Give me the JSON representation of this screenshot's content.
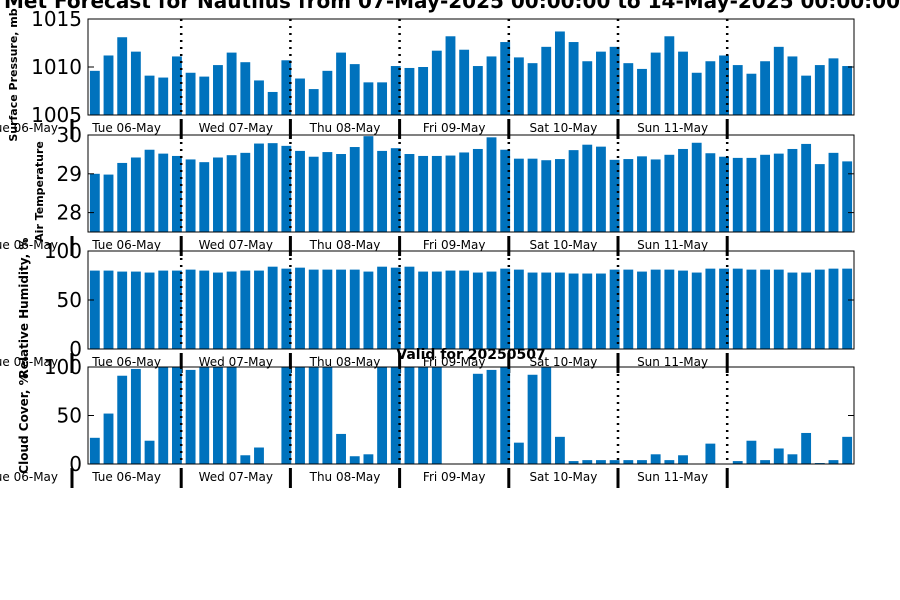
{
  "figure_title": "Met Forecast for Nautilus from 07-May-2025 00:00:00 to 14-May-2025 00:00:00",
  "subtitle": "Valid for 20250507",
  "colors": {
    "bar": "#0072BD",
    "axis": "#000000",
    "background": "#ffffff"
  },
  "day_labels": [
    "Tue 06-May",
    "Wed 07-May",
    "Thu 08-May",
    "Fri 09-May",
    "Sat 10-May",
    "Sun 11-May"
  ],
  "cut_label": "Tue 06-May",
  "chart_data": [
    {
      "type": "bar",
      "name": "pressure",
      "ylabel": "Surface Pressure, mb",
      "ylim": [
        1005,
        1015
      ],
      "yticks": [
        1005,
        1010,
        1015
      ],
      "values": [
        1009.6,
        1011.2,
        1013.1,
        1011.6,
        1009.1,
        1008.9,
        1011.1,
        1009.4,
        1009.0,
        1010.2,
        1011.5,
        1010.5,
        1008.6,
        1007.4,
        1010.7,
        1008.8,
        1007.7,
        1009.6,
        1011.5,
        1010.3,
        1008.4,
        1008.4,
        1010.1,
        1009.9,
        1010.0,
        1011.7,
        1013.2,
        1011.8,
        1010.1,
        1011.1,
        1012.6,
        1011.0,
        1010.4,
        1012.1,
        1013.7,
        1012.6,
        1010.6,
        1011.6,
        1012.1,
        1010.4,
        1009.8,
        1011.5,
        1013.2,
        1011.6,
        1009.4,
        1010.6,
        1011.2,
        1010.2,
        1009.3,
        1010.6,
        1012.1,
        1011.1,
        1009.1,
        1010.2,
        1010.9,
        1010.1
      ]
    },
    {
      "type": "bar",
      "name": "temperature",
      "ylabel": "Air Temperature",
      "ylim": [
        27.5,
        30
      ],
      "yticks": [
        28,
        29,
        30
      ],
      "values": [
        29.0,
        28.98,
        29.28,
        29.42,
        29.62,
        29.52,
        29.46,
        29.37,
        29.3,
        29.42,
        29.48,
        29.54,
        29.78,
        29.79,
        29.72,
        29.59,
        29.44,
        29.56,
        29.51,
        29.69,
        29.97,
        29.59,
        29.66,
        29.51,
        29.46,
        29.46,
        29.47,
        29.55,
        29.64,
        29.94,
        29.62,
        29.39,
        29.39,
        29.35,
        29.38,
        29.61,
        29.75,
        29.7,
        29.36,
        29.38,
        29.45,
        29.37,
        29.49,
        29.64,
        29.8,
        29.53,
        29.44,
        29.41,
        29.41,
        29.49,
        29.52,
        29.64,
        29.77,
        29.25,
        29.54,
        29.32
      ]
    },
    {
      "type": "bar",
      "name": "humidity",
      "ylabel": "Relative Humidity, %",
      "ylim": [
        0,
        100
      ],
      "yticks": [
        0,
        50,
        100
      ],
      "values": [
        80,
        80,
        79,
        79,
        78,
        80,
        80,
        81,
        80,
        78,
        79,
        80,
        80,
        84,
        82,
        83,
        81,
        81,
        81,
        81,
        79,
        84,
        83,
        84,
        79,
        79,
        80,
        80,
        78,
        79,
        82,
        81,
        78,
        78,
        78,
        77,
        77,
        77,
        81,
        81,
        79,
        81,
        81,
        80,
        78,
        82,
        82,
        82,
        81,
        81,
        81,
        78,
        78,
        81,
        82,
        82
      ]
    },
    {
      "type": "bar",
      "name": "cloud",
      "ylabel": "Cloud Cover, %",
      "ylim": [
        0,
        100
      ],
      "yticks": [
        0,
        50,
        100
      ],
      "values": [
        27,
        52,
        91,
        98,
        24,
        100,
        100,
        97,
        100,
        100,
        100,
        9,
        17,
        0,
        100,
        100,
        100,
        100,
        31,
        8,
        10,
        100,
        100,
        100,
        100,
        100,
        0,
        0,
        93,
        97,
        100,
        22,
        92,
        100,
        28,
        3,
        4,
        4,
        4,
        4,
        4,
        10,
        4,
        9,
        0,
        21,
        0,
        3,
        24,
        4,
        16,
        10,
        32,
        1,
        4,
        28
      ]
    }
  ]
}
